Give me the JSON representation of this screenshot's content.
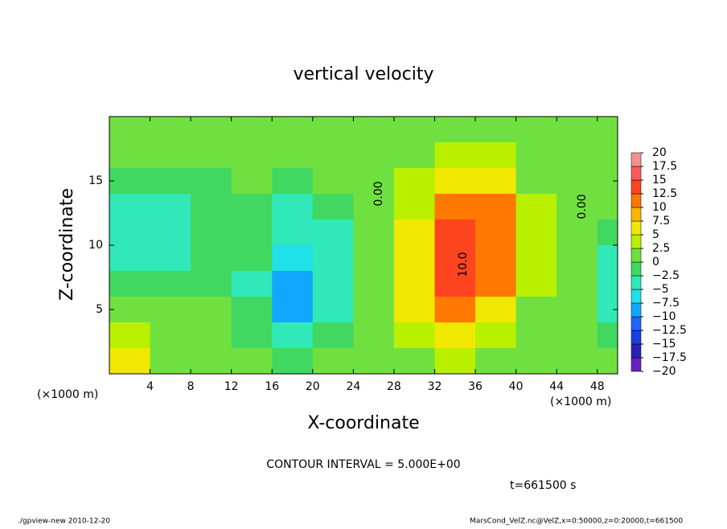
{
  "chart_data": {
    "type": "contourf",
    "title": "vertical velocity",
    "x_label": "X-coordinate",
    "y_label": "Z-coordinate",
    "x_unit": "(×1000 m)",
    "y_unit": "(×1000 m)",
    "x": [
      2,
      6,
      10,
      14,
      18,
      22,
      26,
      30,
      34,
      38,
      42,
      46,
      50
    ],
    "y": [
      19,
      17,
      15,
      13,
      11,
      9,
      7,
      5,
      3,
      1
    ],
    "z": [
      [
        0,
        0,
        0,
        0,
        0,
        0,
        0.5,
        1,
        1,
        1,
        0.5,
        0,
        0
      ],
      [
        0,
        0,
        0,
        0,
        0,
        0,
        0.5,
        1.5,
        3,
        2.5,
        1,
        0,
        0
      ],
      [
        -1,
        -2,
        -1,
        0,
        -1,
        0,
        1,
        3,
        7,
        5,
        2,
        0,
        0
      ],
      [
        -3,
        -3,
        -1,
        -1,
        -3,
        -2,
        1,
        4,
        12,
        10,
        3,
        0,
        0
      ],
      [
        -4,
        -3,
        -1,
        -2,
        -5,
        -3,
        1,
        6,
        13,
        12,
        4,
        0,
        -1
      ],
      [
        -4,
        -3,
        -1,
        -2,
        -7,
        -3,
        1,
        7,
        13,
        11,
        3,
        0,
        -3
      ],
      [
        -2,
        -2,
        -1,
        -3,
        -10,
        -4,
        1,
        7,
        13,
        10,
        3,
        0,
        -4
      ],
      [
        1,
        0,
        0,
        -2,
        -8,
        -3,
        1,
        5,
        12,
        7,
        2,
        0,
        -3
      ],
      [
        4,
        1,
        1,
        -1,
        -4,
        -1,
        1,
        3,
        6,
        4,
        1,
        0,
        -1
      ],
      [
        6,
        1,
        2,
        0,
        -1,
        0,
        1,
        2,
        3,
        2,
        1,
        0,
        0
      ]
    ],
    "xlim": [
      0,
      50
    ],
    "ylim": [
      0,
      20
    ],
    "xticks": [
      4,
      8,
      12,
      16,
      20,
      24,
      28,
      32,
      36,
      40,
      44,
      48
    ],
    "yticks": [
      5,
      10,
      15
    ],
    "clim": [
      -20,
      20
    ],
    "cticks": [
      {
        "value": -20,
        "label": "−20"
      },
      {
        "value": -17.5,
        "label": "−17.5"
      },
      {
        "value": -15,
        "label": "−15"
      },
      {
        "value": -12.5,
        "label": "−12.5"
      },
      {
        "value": -10,
        "label": "−10"
      },
      {
        "value": -7.5,
        "label": "−7.5"
      },
      {
        "value": -5,
        "label": "−5"
      },
      {
        "value": -2.5,
        "label": "−2.5"
      },
      0,
      2.5,
      5,
      7.5,
      10,
      12.5,
      15,
      17.5,
      20
    ],
    "colors": [
      "#6a1fc0",
      "#2a22b0",
      "#1a3ee0",
      "#2064ff",
      "#10a8ff",
      "#20e0e8",
      "#30e8b8",
      "#40d860",
      "#70e040",
      "#b8f000",
      "#f0e800",
      "#ffb400",
      "#ff7800",
      "#ff4420",
      "#ff5a5a",
      "#f09090"
    ],
    "annotations": [
      {
        "text": "0.00",
        "x": 26.5,
        "y": 14
      },
      {
        "text": "0.00",
        "x": 46.5,
        "y": 13
      },
      {
        "text": "10.0",
        "x": 34.8,
        "y": 8.5
      }
    ],
    "contour_interval": "CONTOUR INTERVAL = 5.000E+00",
    "time_label": "t=661500 s",
    "footer_left": "./gpview-new  2010-12-20",
    "footer_right": "MarsCond_VelZ.nc@VelZ,x=0:50000,z=0:20000,t=661500"
  }
}
